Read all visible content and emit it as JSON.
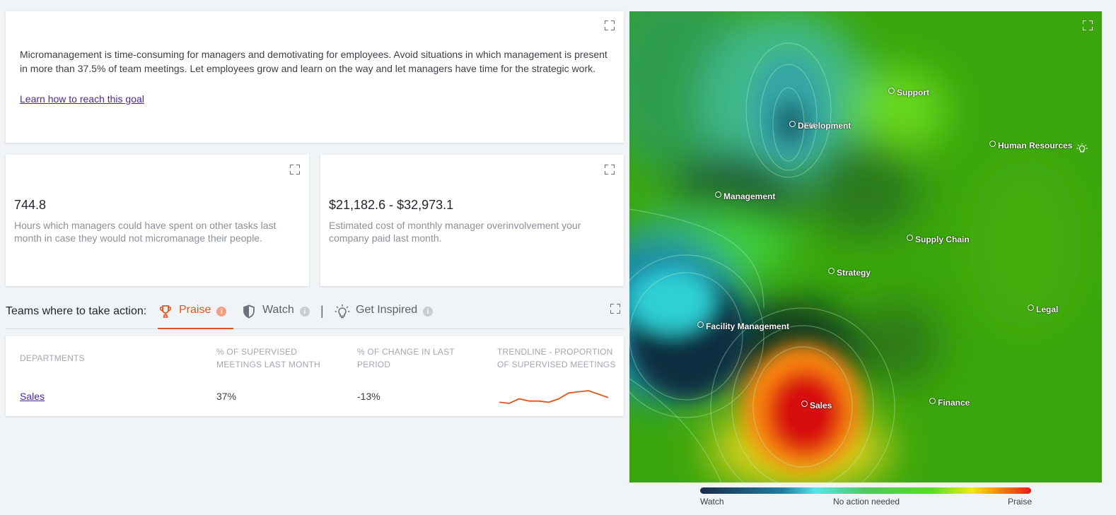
{
  "goal": {
    "text": "Micromanagement is time-consuming for managers and demotivating for employees. Avoid situations in which management is present in more than 37.5% of team meetings. Let employees grow and learn on the way and let managers have time for the strategic work.",
    "link_label": "Learn how to reach this goal"
  },
  "metrics": {
    "hours": {
      "value": "744.8",
      "description": "Hours which managers could have spent on other tasks last month in case they would not micromanage their people."
    },
    "cost": {
      "value": "$21,182.6 - $32,973.1",
      "description": "Estimated cost of monthly manager overinvolvement your company paid last month."
    }
  },
  "teams": {
    "label": "Teams where to take action:",
    "tabs": [
      {
        "label": "Praise",
        "icon": "trophy-icon",
        "active": true
      },
      {
        "label": "Watch",
        "icon": "shield-icon",
        "active": false
      },
      {
        "label": "Get Inspired",
        "icon": "lightbulb-icon",
        "active": false
      }
    ],
    "separator": "|"
  },
  "table": {
    "headers": {
      "departments": "DEPARTMENTS",
      "supervised": "% OF SUPERVISED MEETINGS LAST MONTH",
      "change": "% OF CHANGE IN LAST PERIOD",
      "trendline": "TRENDLINE - PROPORTION OF SUPERVISED MEETINGS"
    },
    "rows": [
      {
        "department": "Sales",
        "supervised": "37%",
        "change": "-13%",
        "trend": [
          33,
          32,
          36,
          34,
          34,
          33,
          36,
          41,
          42,
          43,
          40,
          37
        ],
        "trend_color": "#e3541c"
      }
    ]
  },
  "map": {
    "points": [
      {
        "label": "Support"
      },
      {
        "label": "Development",
        "overlap_label": "DEV"
      },
      {
        "label": "Human Resources"
      },
      {
        "label": "Management"
      },
      {
        "label": "Supply Chain"
      },
      {
        "label": "Strategy"
      },
      {
        "label": "Legal"
      },
      {
        "label": "Facility Management"
      },
      {
        "label": "Sales"
      },
      {
        "label": "Finance"
      }
    ],
    "legend": {
      "left": "Watch",
      "center": "No action needed",
      "right": "Praise"
    }
  },
  "colors": {
    "accent": "#e3541c",
    "link": "#4a2a8f",
    "watch": "#1b2a4a",
    "neutral": "#4ec95e",
    "praise": "#e21d1d"
  }
}
